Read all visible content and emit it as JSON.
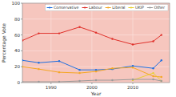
{
  "chart_data": {
    "type": "line",
    "x_label": "Year",
    "y_label": "Percentage Vote",
    "x": [
      1983,
      1987,
      1992,
      1997,
      2001,
      2005,
      2010,
      2015,
      2017
    ],
    "series": [
      {
        "name": "Conservative",
        "color": "#1f6fe0",
        "values": [
          28,
          25,
          27,
          16,
          16,
          17,
          21,
          18,
          28
        ]
      },
      {
        "name": "Labour",
        "color": "#e0302a",
        "values": [
          53,
          62,
          62,
          70,
          63,
          55,
          48,
          52,
          60
        ]
      },
      {
        "name": "Liberal",
        "color": "#f5a623",
        "values": [
          20,
          17,
          13,
          12,
          14,
          18,
          19,
          8,
          7
        ]
      },
      {
        "name": "UKIP",
        "color": "#e8d032",
        "values": [
          null,
          null,
          null,
          null,
          null,
          null,
          3,
          12,
          2
        ]
      },
      {
        "name": "Other",
        "color": "#9a9a9a",
        "values": [
          1,
          1,
          1,
          2,
          3,
          3,
          4,
          4,
          2
        ]
      }
    ],
    "xlim": [
      1983,
      2019
    ],
    "xticks": [
      1990,
      2000,
      2010
    ],
    "ylim": [
      0,
      100
    ],
    "yticks": [
      0,
      20,
      40,
      60,
      80,
      100
    ],
    "grid": true,
    "legend": "top",
    "marker": "circle"
  }
}
